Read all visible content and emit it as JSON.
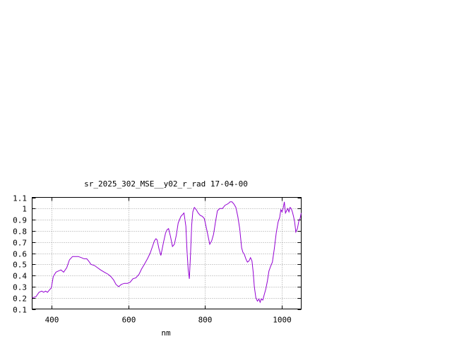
{
  "chart_data": {
    "type": "line",
    "title": "sr_2025_302_MSE__y02_r_rad 17-04-00",
    "xlabel": "nm",
    "ylabel": "",
    "xlim": [
      350,
      1050
    ],
    "ylim": [
      0.1,
      1.1
    ],
    "x_ticks": [
      400,
      600,
      800,
      1000
    ],
    "x_tick_labels": [
      "400",
      "600",
      "800",
      "1000"
    ],
    "y_ticks": [
      0.1,
      0.2,
      0.3,
      0.4,
      0.5,
      0.6,
      0.7,
      0.8,
      0.9,
      1.0,
      1.1
    ],
    "y_tick_labels": [
      "0.1",
      "0.2",
      "0.3",
      "0.4",
      "0.5",
      "0.6",
      "0.7",
      "0.8",
      "0.9",
      "1",
      "1.1"
    ],
    "grid": true,
    "line_color": "#9400d3",
    "series": [
      {
        "x": [
          350,
          360,
          368,
          375,
          380,
          385,
          390,
          395,
          400,
          405,
          412,
          418,
          425,
          432,
          440,
          447,
          455,
          462,
          470,
          478,
          485,
          492,
          497,
          503,
          512,
          520,
          528,
          538,
          548,
          555,
          562,
          568,
          575,
          582,
          590,
          598,
          605,
          612,
          620,
          628,
          635,
          642,
          650,
          657,
          663,
          668,
          672,
          675,
          680,
          685,
          692,
          697,
          701,
          705,
          710,
          715,
          720,
          725,
          730,
          737,
          745,
          750,
          753,
          756,
          759,
          762,
          765,
          768,
          772,
          777,
          782,
          787,
          793,
          798,
          805,
          812,
          817,
          822,
          827,
          832,
          838,
          845,
          852,
          858,
          862,
          865,
          870,
          875,
          880,
          885,
          890,
          895,
          898,
          902,
          906,
          910,
          914,
          918,
          922,
          925,
          928,
          932,
          936,
          940,
          943,
          946,
          950,
          954,
          958,
          962,
          966,
          970,
          975,
          980,
          985,
          990,
          994,
          997,
          1000,
          1003,
          1006,
          1009,
          1012,
          1015,
          1018,
          1021,
          1024,
          1027,
          1030,
          1033,
          1036,
          1040,
          1044,
          1047,
          1050
        ],
        "values": [
          0.2,
          0.21,
          0.25,
          0.26,
          0.25,
          0.26,
          0.25,
          0.27,
          0.29,
          0.39,
          0.43,
          0.44,
          0.45,
          0.43,
          0.47,
          0.54,
          0.57,
          0.57,
          0.57,
          0.56,
          0.55,
          0.55,
          0.53,
          0.5,
          0.49,
          0.47,
          0.45,
          0.43,
          0.41,
          0.39,
          0.36,
          0.32,
          0.3,
          0.32,
          0.33,
          0.33,
          0.34,
          0.37,
          0.38,
          0.41,
          0.46,
          0.5,
          0.55,
          0.6,
          0.66,
          0.71,
          0.73,
          0.72,
          0.64,
          0.58,
          0.7,
          0.78,
          0.81,
          0.82,
          0.75,
          0.66,
          0.68,
          0.76,
          0.87,
          0.93,
          0.96,
          0.84,
          0.62,
          0.45,
          0.37,
          0.58,
          0.85,
          0.97,
          1.01,
          0.99,
          0.96,
          0.94,
          0.93,
          0.91,
          0.8,
          0.68,
          0.71,
          0.77,
          0.88,
          0.98,
          1.0,
          1.0,
          1.03,
          1.04,
          1.05,
          1.06,
          1.06,
          1.04,
          1.01,
          0.93,
          0.82,
          0.65,
          0.61,
          0.59,
          0.55,
          0.52,
          0.53,
          0.56,
          0.53,
          0.43,
          0.3,
          0.2,
          0.17,
          0.19,
          0.16,
          0.19,
          0.18,
          0.23,
          0.28,
          0.35,
          0.44,
          0.48,
          0.52,
          0.64,
          0.78,
          0.88,
          0.92,
          0.99,
          0.97,
          1.0,
          1.06,
          0.96,
          0.98,
          1.0,
          0.97,
          1.01,
          1.0,
          0.97,
          0.93,
          0.88,
          0.79,
          0.82,
          0.89,
          0.91,
          0.96
        ]
      }
    ]
  }
}
